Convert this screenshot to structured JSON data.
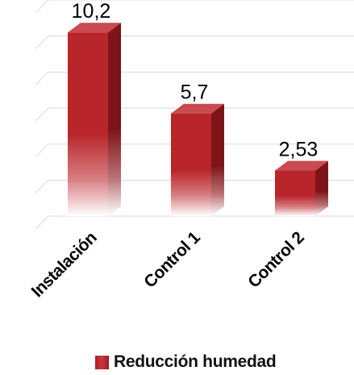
{
  "chart_data": {
    "type": "bar",
    "categories": [
      "Instalación",
      "Control 1",
      "Control 2"
    ],
    "series": [
      {
        "name": "Reducción humedad",
        "values": [
          10.2,
          5.7,
          2.53
        ]
      }
    ],
    "value_labels": [
      "10,2",
      "5,7",
      "2,53"
    ],
    "ylim": [
      0,
      12
    ],
    "grid": true,
    "legend_position": "bottom",
    "colors": {
      "bar_front": "#b8252b",
      "bar_side": "#7e1418",
      "bar_top": "#c94a4f",
      "grid": "#d9d9d9"
    }
  },
  "legend": {
    "label": "Reducción humedad"
  }
}
